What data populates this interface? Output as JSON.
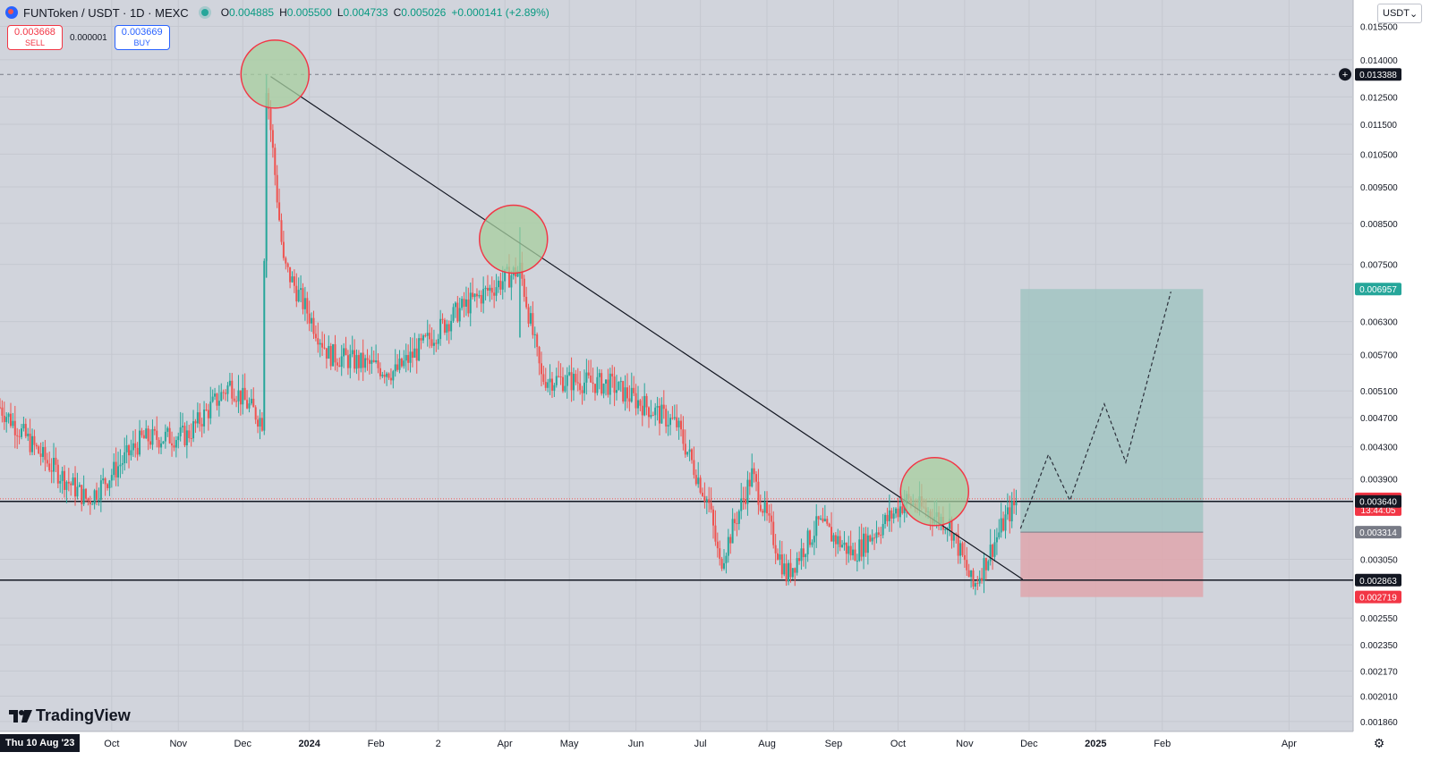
{
  "header": {
    "symbol_title": "FUNToken / USDT · 1D · MEXC",
    "ohlc": [
      {
        "k": "O",
        "v": "0.004885"
      },
      {
        "k": "H",
        "v": "0.005500"
      },
      {
        "k": "L",
        "v": "0.004733"
      },
      {
        "k": "C",
        "v": "0.005026"
      },
      {
        "k": "",
        "v": "+0.000141 (+2.89%)"
      }
    ]
  },
  "trade": {
    "sell_price": "0.003668",
    "sell_label": "SELL",
    "spread": "0.000001",
    "buy_price": "0.003669",
    "buy_label": "BUY"
  },
  "currency_select": "USDT",
  "logo_text": "TradingView",
  "crosshair_date": "Thu 10 Aug '23",
  "colors": {
    "background": "#d1d4dc",
    "up": "#26a69a",
    "down": "#ef5350",
    "target_zone": "#9fc3c1",
    "stop_zone": "#dfa6ad",
    "circle_fill": "#a7cf9f",
    "circle_stroke": "#f23645"
  },
  "chart_data": {
    "type": "candlestick",
    "y_scale": "log",
    "ylim": [
      0.00178,
      0.0168
    ],
    "y_ticks": [
      "0.015500",
      "0.014000",
      "0.012500",
      "0.011500",
      "0.010500",
      "0.009500",
      "0.008500",
      "0.007500",
      "0.006300",
      "0.005700",
      "0.005100",
      "0.004700",
      "0.004300",
      "0.003900",
      "0.003050",
      "0.002550",
      "0.002350",
      "0.002170",
      "0.002010",
      "0.001860"
    ],
    "x_ticks": [
      "Oct",
      "Nov",
      "Dec",
      "2024",
      "Feb",
      "2",
      "Apr",
      "May",
      "Jun",
      "Jul",
      "Aug",
      "Sep",
      "Oct",
      "Nov",
      "Dec",
      "2025",
      "Feb",
      "Apr"
    ],
    "x_range": [
      "2023-08-10",
      "2025-04-30"
    ],
    "series": [
      {
        "date": "2023-08-10",
        "close": 0.00485
      },
      {
        "date": "2023-09-01",
        "close": 0.0041
      },
      {
        "date": "2023-09-20",
        "close": 0.00365
      },
      {
        "date": "2023-10-15",
        "close": 0.0044
      },
      {
        "date": "2023-11-05",
        "close": 0.00445
      },
      {
        "date": "2023-11-25",
        "close": 0.0052
      },
      {
        "date": "2023-12-10",
        "close": 0.00465
      },
      {
        "date": "2023-12-12",
        "close": 0.013
      },
      {
        "date": "2023-12-20",
        "close": 0.0075
      },
      {
        "date": "2024-01-10",
        "close": 0.0057
      },
      {
        "date": "2024-02-10",
        "close": 0.0054
      },
      {
        "date": "2024-03-10",
        "close": 0.0065
      },
      {
        "date": "2024-04-08",
        "close": 0.0074
      },
      {
        "date": "2024-04-18",
        "close": 0.0053
      },
      {
        "date": "2024-05-20",
        "close": 0.0052
      },
      {
        "date": "2024-06-20",
        "close": 0.0046
      },
      {
        "date": "2024-07-05",
        "close": 0.0036
      },
      {
        "date": "2024-07-10",
        "close": 0.003
      },
      {
        "date": "2024-07-25",
        "close": 0.00395
      },
      {
        "date": "2024-08-10",
        "close": 0.0029
      },
      {
        "date": "2024-08-25",
        "close": 0.0034
      },
      {
        "date": "2024-09-10",
        "close": 0.0031
      },
      {
        "date": "2024-10-05",
        "close": 0.00365
      },
      {
        "date": "2024-10-25",
        "close": 0.0034
      },
      {
        "date": "2024-11-05",
        "close": 0.0028
      },
      {
        "date": "2024-11-20",
        "close": 0.00345
      },
      {
        "date": "2024-11-26",
        "close": 0.00366
      }
    ],
    "price_labels": [
      {
        "value": 0.013388,
        "text": "0.013388",
        "style": "dark"
      },
      {
        "value": 0.006957,
        "text": "0.006957",
        "style": "green"
      },
      {
        "value": 0.003669,
        "text": "0.003669",
        "style": "red",
        "sub": "13:44:05"
      },
      {
        "value": 0.00364,
        "text": "0.003640",
        "style": "dark"
      },
      {
        "value": 0.003314,
        "text": "0.003314",
        "style": "gray"
      },
      {
        "value": 0.002863,
        "text": "0.002863",
        "style": "dark"
      },
      {
        "value": 0.002719,
        "text": "0.002719",
        "style": "red"
      }
    ],
    "horizontal_lines": [
      {
        "value": 0.00364
      },
      {
        "value": 0.002863
      }
    ],
    "dashed_line": {
      "value": 0.013388
    },
    "trendline": [
      {
        "date": "2023-12-14",
        "value": 0.0133
      },
      {
        "date": "2024-11-28",
        "value": 0.00287
      }
    ],
    "circles": [
      {
        "date": "2023-12-16",
        "value": 0.0134
      },
      {
        "date": "2024-04-05",
        "value": 0.0081
      },
      {
        "date": "2024-10-18",
        "value": 0.00375
      }
    ],
    "position": {
      "entry": 0.003314,
      "target": 0.006957,
      "stop": 0.002719,
      "start": "2024-11-27",
      "end": "2025-02-20"
    },
    "projection_path": [
      {
        "date": "2024-11-27",
        "value": 0.00335
      },
      {
        "date": "2024-12-10",
        "value": 0.0042
      },
      {
        "date": "2024-12-20",
        "value": 0.00365
      },
      {
        "date": "2025-01-05",
        "value": 0.0049
      },
      {
        "date": "2025-01-15",
        "value": 0.0041
      },
      {
        "date": "2025-02-05",
        "value": 0.0069
      }
    ]
  }
}
